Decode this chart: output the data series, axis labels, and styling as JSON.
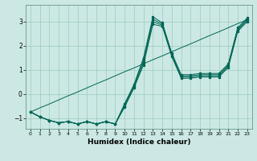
{
  "xlabel": "Humidex (Indice chaleur)",
  "bg_color": "#cce8e4",
  "line_color": "#006655",
  "grid_color": "#99ccbb",
  "xlim": [
    -0.5,
    23.5
  ],
  "ylim": [
    -1.45,
    3.7
  ],
  "yticks": [
    -1,
    0,
    1,
    2,
    3
  ],
  "xticks": [
    0,
    1,
    2,
    3,
    4,
    5,
    6,
    7,
    8,
    9,
    10,
    11,
    12,
    13,
    14,
    15,
    16,
    17,
    18,
    19,
    20,
    21,
    22,
    23
  ],
  "series1": [
    -0.75,
    -0.95,
    -1.1,
    -1.2,
    -1.15,
    -1.25,
    -1.15,
    -1.25,
    -1.15,
    -1.25,
    -0.55,
    0.25,
    1.2,
    2.9,
    2.8,
    1.55,
    0.65,
    0.65,
    0.7,
    0.7,
    0.7,
    1.1,
    2.6,
    3.0
  ],
  "series2": [
    -0.75,
    -0.95,
    -1.1,
    -1.2,
    -1.15,
    -1.25,
    -1.15,
    -1.25,
    -1.15,
    -1.25,
    -0.5,
    0.3,
    1.3,
    3.0,
    2.85,
    1.6,
    0.7,
    0.7,
    0.75,
    0.75,
    0.75,
    1.15,
    2.65,
    3.05
  ],
  "series3": [
    -0.75,
    -0.95,
    -1.1,
    -1.2,
    -1.15,
    -1.25,
    -1.15,
    -1.25,
    -1.15,
    -1.25,
    -0.45,
    0.35,
    1.4,
    3.1,
    2.9,
    1.65,
    0.75,
    0.75,
    0.8,
    0.8,
    0.8,
    1.2,
    2.7,
    3.1
  ],
  "series4": [
    -0.75,
    -0.95,
    -1.1,
    -1.2,
    -1.15,
    -1.25,
    -1.15,
    -1.25,
    -1.15,
    -1.25,
    -0.4,
    0.4,
    1.5,
    3.2,
    2.95,
    1.7,
    0.8,
    0.8,
    0.85,
    0.85,
    0.85,
    1.25,
    2.75,
    3.15
  ],
  "linear": [
    -0.75,
    -0.58,
    -0.42,
    -0.25,
    -0.08,
    0.08,
    0.25,
    0.42,
    0.58,
    0.75,
    0.92,
    1.08,
    1.25,
    1.42,
    1.58,
    1.75,
    1.92,
    2.08,
    2.25,
    2.42,
    2.58,
    2.75,
    2.92,
    3.08
  ]
}
